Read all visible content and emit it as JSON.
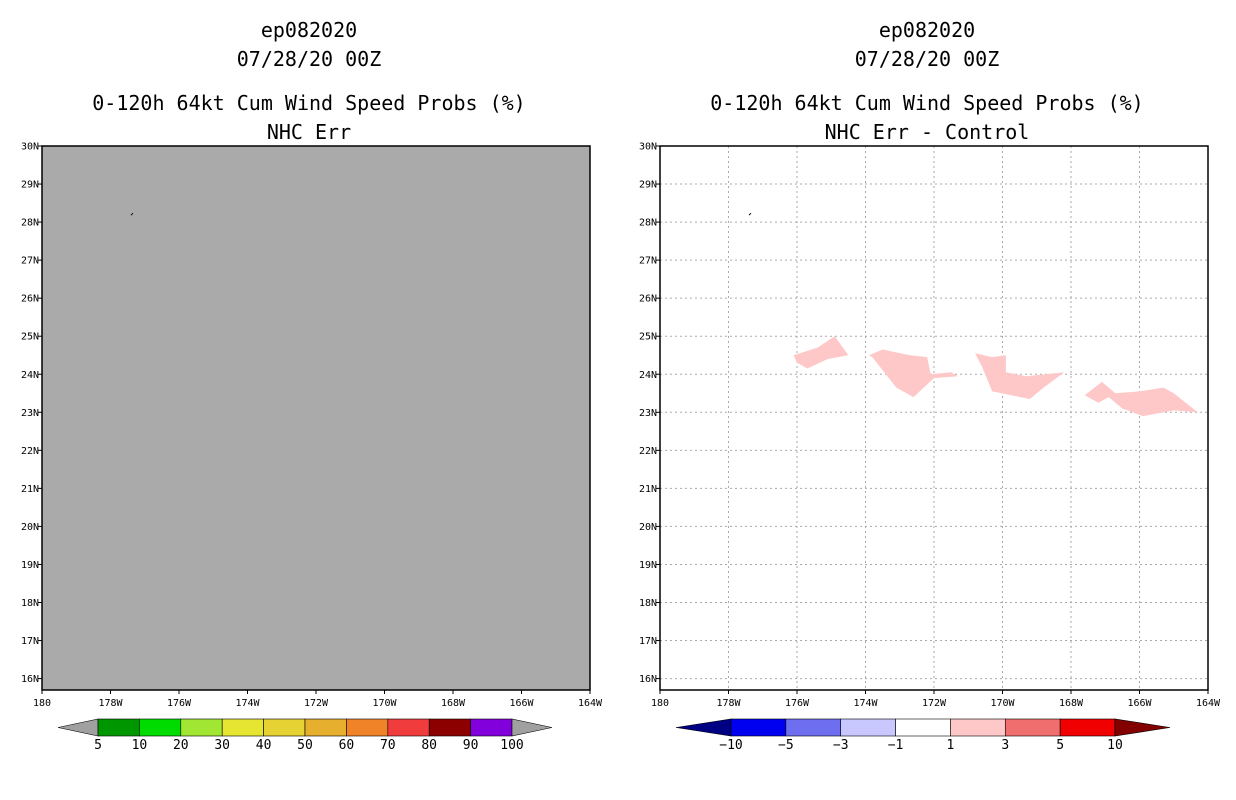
{
  "colors": {
    "background": "#ffffff",
    "left_fill": "#aaaaaa",
    "grid": "#aaaaaa",
    "axis": "#000000"
  },
  "chart_data": [
    {
      "type": "heatmap",
      "title": [
        "ep082020",
        "07/28/20 00Z",
        "0-120h 64kt Cum Wind Speed Probs (%)",
        "NHC Err"
      ],
      "xlim": [
        180,
        164
      ],
      "ylim": [
        15.7,
        30
      ],
      "xticks": [
        180,
        178,
        176,
        174,
        172,
        170,
        168,
        166,
        164
      ],
      "xticklabels": [
        "180",
        "178W",
        "176W",
        "174W",
        "172W",
        "170W",
        "168W",
        "166W",
        "164W"
      ],
      "yticks": [
        30,
        29,
        28,
        27,
        26,
        25,
        24,
        23,
        22,
        21,
        20,
        19,
        18,
        17,
        16
      ],
      "yticklabels": [
        "30N",
        "29N",
        "28N",
        "27N",
        "26N",
        "25N",
        "24N",
        "23N",
        "22N",
        "21N",
        "20N",
        "19N",
        "18N",
        "17N",
        "16N"
      ],
      "grid": false,
      "field": "below 5% everywhere (uniform gray)",
      "colorbar": {
        "levels": [
          "5",
          "10",
          "20",
          "30",
          "40",
          "50",
          "60",
          "70",
          "80",
          "90",
          "100"
        ],
        "colors": [
          "#a0a0a0",
          "#009600",
          "#00dc00",
          "#a0e632",
          "#e6e632",
          "#e6d232",
          "#e6af2d",
          "#f08228",
          "#f03c3c",
          "#8c0000",
          "#8200dc",
          "#a0a0a0"
        ]
      }
    },
    {
      "type": "heatmap",
      "title": [
        "ep082020",
        "07/28/20 00Z",
        "0-120h 64kt Cum Wind Speed Probs (%)",
        "NHC Err - Control"
      ],
      "xlim": [
        180,
        164
      ],
      "ylim": [
        15.7,
        30
      ],
      "xticks": [
        180,
        178,
        176,
        174,
        172,
        170,
        168,
        166,
        164
      ],
      "xticklabels": [
        "180",
        "178W",
        "176W",
        "174W",
        "172W",
        "170W",
        "168W",
        "166W",
        "164W"
      ],
      "yticks": [
        30,
        29,
        28,
        27,
        26,
        25,
        24,
        23,
        22,
        21,
        20,
        19,
        18,
        17,
        16
      ],
      "yticklabels": [
        "30N",
        "29N",
        "28N",
        "27N",
        "26N",
        "25N",
        "24N",
        "23N",
        "22N",
        "21N",
        "20N",
        "19N",
        "18N",
        "17N",
        "16N"
      ],
      "grid": true,
      "field_color": "#ffc8c8",
      "regions": [
        [
          [
            176.1,
            24.5
          ],
          [
            175.4,
            24.7
          ],
          [
            174.9,
            25.0
          ],
          [
            174.5,
            24.5
          ],
          [
            175.1,
            24.4
          ],
          [
            175.7,
            24.15
          ],
          [
            176.0,
            24.3
          ]
        ],
        [
          [
            173.9,
            24.5
          ],
          [
            173.5,
            24.65
          ],
          [
            172.7,
            24.5
          ],
          [
            172.2,
            24.45
          ],
          [
            172.1,
            24.0
          ],
          [
            171.5,
            24.05
          ],
          [
            171.3,
            23.95
          ],
          [
            172.0,
            23.9
          ],
          [
            172.6,
            23.4
          ],
          [
            173.1,
            23.65
          ],
          [
            173.8,
            24.45
          ]
        ],
        [
          [
            170.8,
            24.55
          ],
          [
            170.3,
            24.45
          ],
          [
            169.9,
            24.5
          ],
          [
            169.9,
            24.05
          ],
          [
            169.3,
            23.95
          ],
          [
            168.2,
            24.05
          ],
          [
            168.8,
            23.65
          ],
          [
            169.2,
            23.35
          ],
          [
            170.3,
            23.55
          ],
          [
            170.6,
            24.2
          ]
        ],
        [
          [
            167.6,
            23.45
          ],
          [
            167.1,
            23.8
          ],
          [
            166.7,
            23.5
          ],
          [
            166.0,
            23.55
          ],
          [
            165.3,
            23.65
          ],
          [
            165.0,
            23.5
          ],
          [
            164.3,
            23.0
          ],
          [
            165.0,
            23.05
          ],
          [
            165.9,
            22.9
          ],
          [
            166.5,
            23.1
          ],
          [
            166.9,
            23.4
          ],
          [
            167.2,
            23.25
          ]
        ]
      ],
      "colorbar": {
        "levels": [
          "-10",
          "-5",
          "-3",
          "-1",
          "1",
          "3",
          "5",
          "10"
        ],
        "colors": [
          "#000082",
          "#0000f0",
          "#6e6ef0",
          "#c8c8ff",
          "#ffffff",
          "#ffc8c8",
          "#f06e6e",
          "#f00000",
          "#820000"
        ]
      }
    }
  ]
}
